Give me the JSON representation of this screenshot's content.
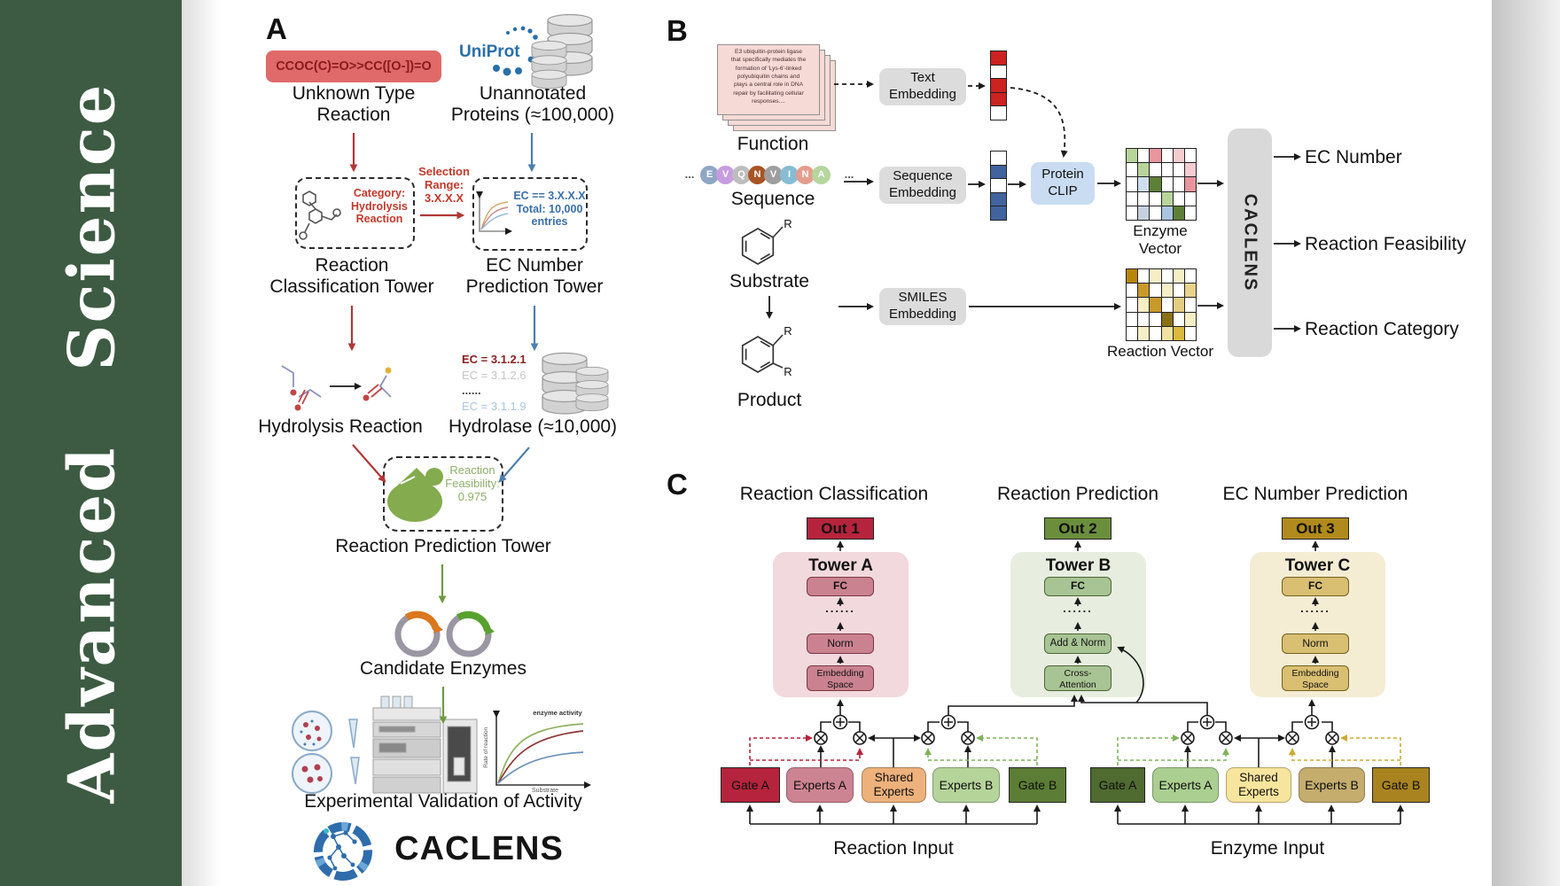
{
  "journal": {
    "name": "Advanced Science"
  },
  "colors": {
    "sidebar_green": "#3d5b42",
    "smiles_box": "#e06a6a",
    "smiles_text": "#8a1a1a",
    "red_arrow": "#b23737",
    "blue_arrow": "#4e7fae",
    "green_arrow": "#6f9a45",
    "uniprot_blue": "#2a6fa8",
    "category_red": "#c0392b",
    "ec_blue": "#3a6ea8",
    "enzyme_green": "#84ab4e",
    "feasibility_green": "#8fae6b",
    "plasmid_orange": "#d9781e",
    "plasmid_green": "#58a12e",
    "protein_clip_blue": "#c9dcf2",
    "embedding_gray": "#dcdcdc",
    "out1": "#b5243c",
    "out2": "#6b8e3c",
    "out3": "#b08a1c",
    "tower_a_bg": "#f2d9dd",
    "tower_b_bg": "#e7eee0",
    "tower_c_bg": "#f4edd3",
    "tower_a_box": "#ca8290",
    "tower_b_box": "#a9c494",
    "tower_c_box": "#d9bf72",
    "gate_a_left": "#b5243c",
    "experts_a_left": "#cd8492",
    "shared_left": "#edb17c",
    "experts_b_left": "#b5d49a",
    "gate_b_left": "#5c7d35",
    "gate_a_right": "#4f6b30",
    "experts_a_right": "#abcf90",
    "shared_right": "#f8e59d",
    "experts_b_right": "#c4ad6d",
    "gate_b_right": "#a8831f"
  },
  "panelA": {
    "label": "A",
    "smiles": "CCOC(C)=O>>CC([O-])=O",
    "unknown_reaction": "Unknown Type\nReaction",
    "uniprot": "UniProt",
    "unannotated": "Unannotated\nProteins (≈100,000)",
    "category": "Category:\nHydrolysis\nReaction",
    "selection": "Selection\nRange:\n3.X.X.X",
    "ec_filter": "EC == 3.X.X.X\nTotal: 10,000\nentries",
    "tower_classification": "Reaction\nClassification Tower",
    "tower_ec": "EC Number\nPrediction Tower",
    "ec_list": [
      {
        "text": "EC = 3.1.2.1",
        "color": "#8a1f1f",
        "bold": true
      },
      {
        "text": "EC = 3.1.2.6",
        "color": "#c6c6c6",
        "bold": false
      },
      {
        "text": "......",
        "color": "#444444",
        "bold": true
      },
      {
        "text": "EC = 3.1.1.9",
        "color": "#a9c6e0",
        "bold": false
      }
    ],
    "hydrolysis": "Hydrolysis Reaction",
    "hydrolase": "Hydrolase (≈10,000)",
    "enzyme_label": "Enzyme",
    "feasibility": "Reaction\nFeasibility:\n0.975",
    "tower_prediction": "Reaction Prediction Tower",
    "candidates": "Candidate Enzymes",
    "validation": "Experimental Validation of Activity",
    "logo_text": "CACLENS",
    "plot": {
      "activity": "enzyme activity",
      "y": "Rate of reaction",
      "x": "Substrate"
    }
  },
  "panelB": {
    "label": "B",
    "card_text": "E3 ubiquitin-protein ligase\nthat specifically mediates the\nformation of 'Lys-6'-linked\npolyubiquitin chains and\nplays a central role in DNA\nrepair by facilitating cellular\nresponses....",
    "function_label": "Function",
    "sequence_label": "Sequence",
    "ellipsis": "...",
    "seq": [
      {
        "l": "E",
        "c": "#8fa6c4"
      },
      {
        "l": "V",
        "c": "#c79ce0"
      },
      {
        "l": "Q",
        "c": "#bdbdbd"
      },
      {
        "l": "N",
        "c": "#a85423"
      },
      {
        "l": "V",
        "c": "#9e9e9e"
      },
      {
        "l": "I",
        "c": "#86bcd4"
      },
      {
        "l": "N",
        "c": "#e49d8d"
      },
      {
        "l": "A",
        "c": "#b5d69c"
      }
    ],
    "text_embedding": "Text\nEmbedding",
    "sequence_embedding": "Sequence\nEmbedding",
    "smiles_embedding": "SMILES\nEmbedding",
    "protein_clip": "Protein\nCLIP",
    "text_vector": [
      "#cc2222",
      "#ffffff",
      "#cc2222",
      "#cc2222",
      "#ffffff"
    ],
    "sequence_vector": [
      "#ffffff",
      "#41639e",
      "#ffffff",
      "#41639e",
      "#41639e"
    ],
    "enzyme_matrix": [
      [
        "#b7d49a",
        "#ffffff",
        "#e8959d",
        "#ffffff",
        "#f4cdd1",
        "#ffffff"
      ],
      [
        "#ffffff",
        "#b7d49a",
        "#ffffff",
        "#ffffff",
        "#ffffff",
        "#f4cdd1"
      ],
      [
        "#ffffff",
        "#cfdeee",
        "#5d8036",
        "#ffffff",
        "#ffffff",
        "#e8959d"
      ],
      [
        "#ffffff",
        "#ffffff",
        "#ffffff",
        "#b7d49a",
        "#ffffff",
        "#ffffff"
      ],
      [
        "#ffffff",
        "#c5d1df",
        "#ffffff",
        "#a9c4e0",
        "#5d8036",
        "#ffffff"
      ]
    ],
    "reaction_matrix": [
      [
        "#b8860b",
        "#ffffff",
        "#f8eec6",
        "#ffffff",
        "#f8eec6",
        "#ffffff"
      ],
      [
        "#ffffff",
        "#c9992a",
        "#ffffff",
        "#f8eec6",
        "#ffffff",
        "#e9d28c"
      ],
      [
        "#ffffff",
        "#f8eec6",
        "#c9992a",
        "#ffffff",
        "#e2cd82",
        "#ffffff"
      ],
      [
        "#ffffff",
        "#ffffff",
        "#ffffff",
        "#8a7013",
        "#ffffff",
        "#f8eec6"
      ],
      [
        "#ffffff",
        "#f8eec6",
        "#ffffff",
        "#f1e1a2",
        "#dab93e",
        "#ffffff"
      ]
    ],
    "enzyme_vector_label": "Enzyme Vector",
    "reaction_vector_label": "Reaction Vector",
    "caclens": "CACLENS",
    "outputs": [
      "EC Number",
      "Reaction Feasibility",
      "Reaction Category"
    ],
    "substrate": "Substrate",
    "product": "Product",
    "r_label": "R"
  },
  "panelC": {
    "label": "C",
    "towers": [
      {
        "header": "Reaction Classification",
        "out": "Out 1",
        "name": "Tower A",
        "fc": "FC",
        "dots": "......",
        "mid": "Norm",
        "bottom": "Embedding\nSpace"
      },
      {
        "header": "Reaction Prediction",
        "out": "Out 2",
        "name": "Tower B",
        "fc": "FC",
        "dots": "......",
        "mid": "Add & Norm",
        "bottom": "Cross-\nAttention"
      },
      {
        "header": "EC Number Prediction",
        "out": "Out 3",
        "name": "Tower C",
        "fc": "FC",
        "dots": "......",
        "mid": "Norm",
        "bottom": "Embedding\nSpace"
      }
    ],
    "moe": {
      "reaction": {
        "gate_a": "Gate A",
        "experts_a": "Experts A",
        "shared": "Shared\nExperts",
        "experts_b": "Experts B",
        "gate_b": "Gate B",
        "input": "Reaction Input"
      },
      "enzyme": {
        "gate_a": "Gate A",
        "experts_a": "Experts A",
        "shared": "Shared\nExperts",
        "experts_b": "Experts B",
        "gate_b": "Gate B",
        "input": "Enzyme Input"
      }
    }
  }
}
